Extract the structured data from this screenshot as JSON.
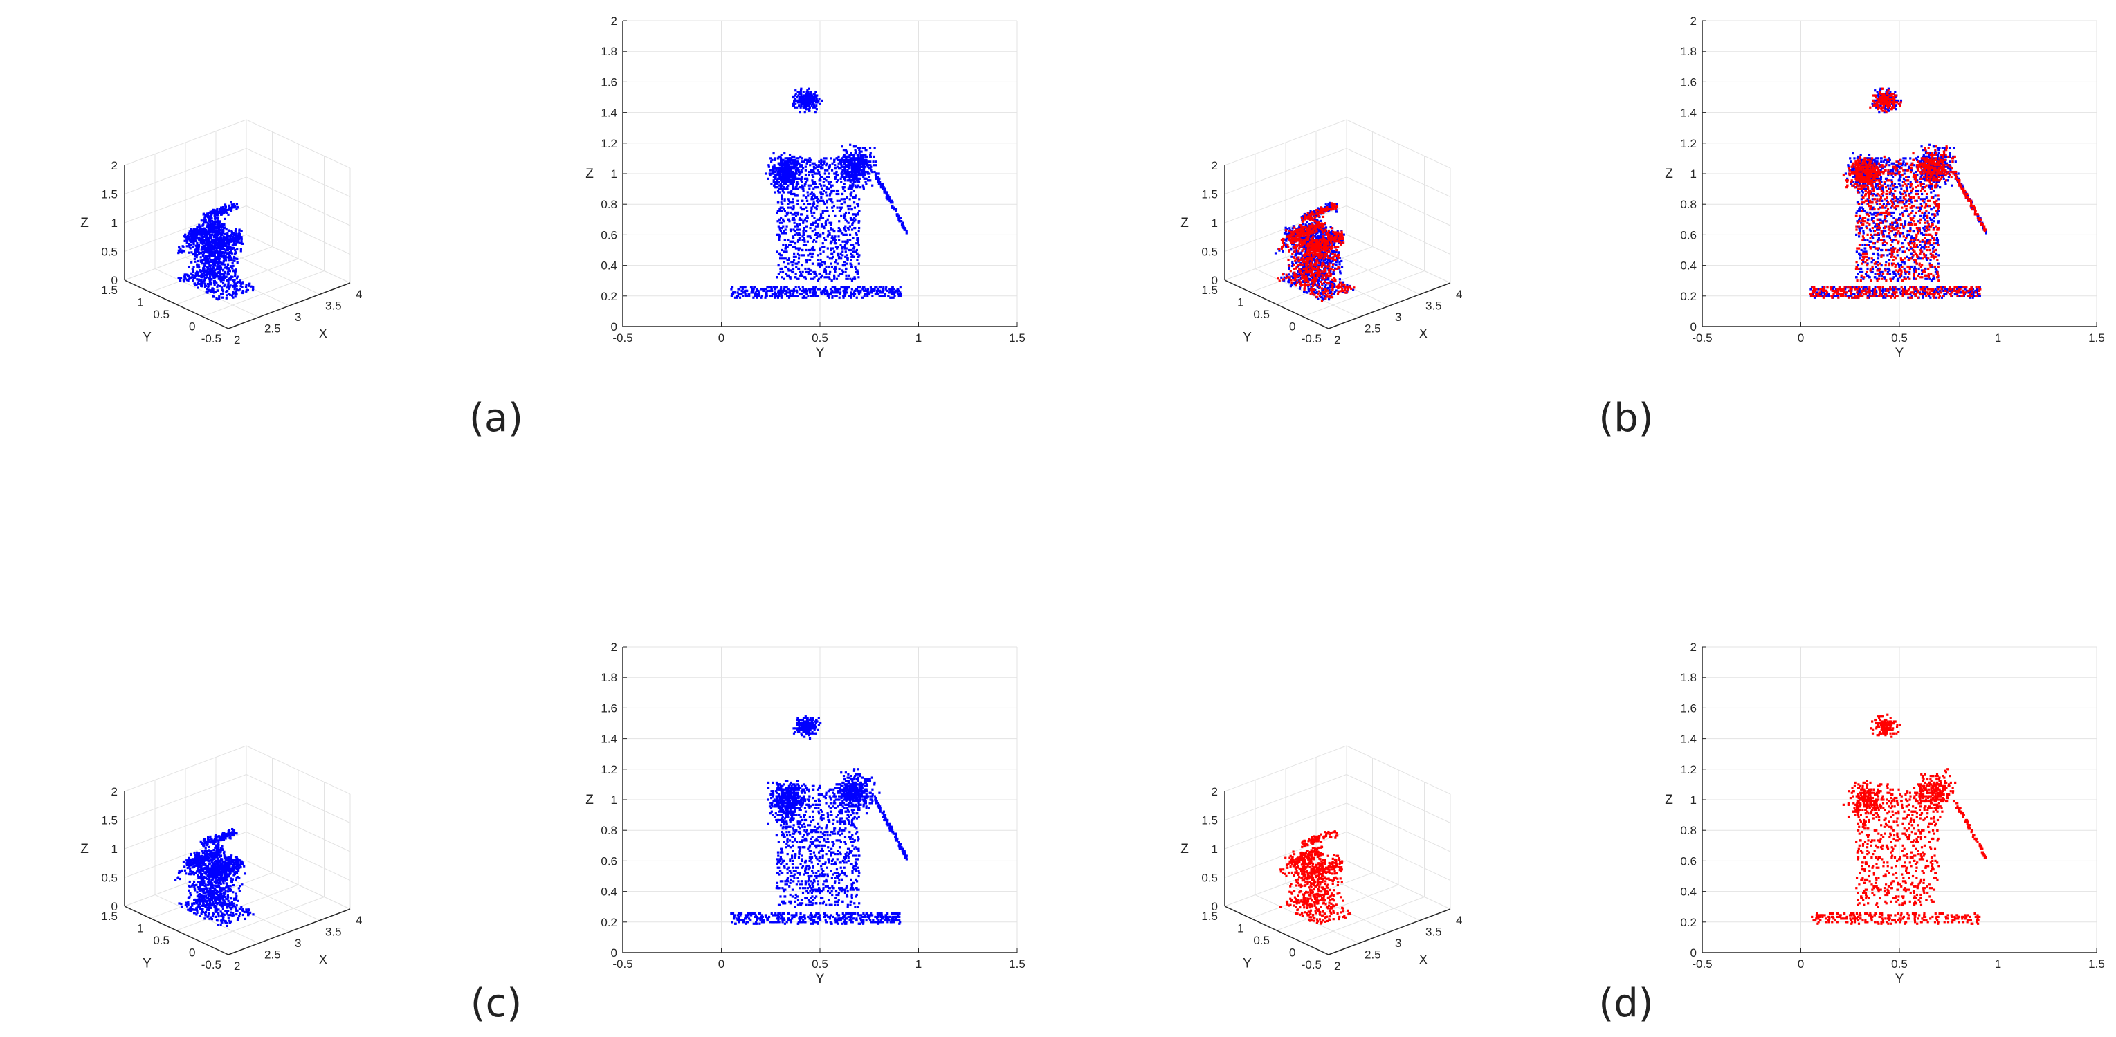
{
  "colors": {
    "blue": "#0000ff",
    "red": "#ff0000",
    "grid": "#e3e3e3",
    "axis": "#262626"
  },
  "captions": {
    "a": "(a)",
    "b": "(b)",
    "c": "(c)",
    "d": "(d)"
  },
  "chart_data": [
    {
      "id": "p3d_a",
      "type": "scatter",
      "view": "3d",
      "xlabel": "X",
      "ylabel": "Y",
      "zlabel": "Z",
      "xlim": [
        2,
        4
      ],
      "ylim": [
        -0.5,
        1.5
      ],
      "zlim": [
        0,
        2
      ],
      "xticks": [
        "2",
        "2.5",
        "3",
        "3.5",
        "4"
      ],
      "yticks": [
        "-0.5",
        "0",
        "0.5",
        "1",
        "1.5"
      ],
      "zticks": [
        "0",
        "0.5",
        "1",
        "1.5",
        "2"
      ],
      "grid": true,
      "series": [
        {
          "color": "blue",
          "seed": 11,
          "count": 1500
        }
      ]
    },
    {
      "id": "p2d_a",
      "type": "scatter",
      "view": "2d",
      "xlabel": "Y",
      "ylabel": "Z",
      "xlim": [
        -0.5,
        1.5
      ],
      "ylim": [
        0,
        2
      ],
      "xticks": [
        "-0.5",
        "0",
        "0.5",
        "1",
        "1.5"
      ],
      "yticks": [
        "0",
        "0.2",
        "0.4",
        "0.6",
        "0.8",
        "1",
        "1.2",
        "1.4",
        "1.6",
        "1.8",
        "2"
      ],
      "grid": true,
      "series": [
        {
          "color": "blue",
          "seed": 11,
          "count": 2600
        }
      ]
    },
    {
      "id": "p3d_b",
      "type": "scatter",
      "view": "3d",
      "xlabel": "X",
      "ylabel": "Y",
      "zlabel": "Z",
      "xlim": [
        2,
        4
      ],
      "ylim": [
        -0.5,
        1.5
      ],
      "zlim": [
        0,
        2
      ],
      "xticks": [
        "2",
        "2.5",
        "3",
        "3.5",
        "4"
      ],
      "yticks": [
        "-0.5",
        "0",
        "0.5",
        "1",
        "1.5"
      ],
      "zticks": [
        "0",
        "0.5",
        "1",
        "1.5",
        "2"
      ],
      "grid": true,
      "series": [
        {
          "color": "blue",
          "seed": 11,
          "count": 1200
        },
        {
          "color": "red",
          "seed": 23,
          "count": 900
        }
      ]
    },
    {
      "id": "p2d_b",
      "type": "scatter",
      "view": "2d",
      "xlabel": "Y",
      "ylabel": "Z",
      "xlim": [
        -0.5,
        1.5
      ],
      "ylim": [
        0,
        2
      ],
      "xticks": [
        "-0.5",
        "0",
        "0.5",
        "1",
        "1.5"
      ],
      "yticks": [
        "0",
        "0.2",
        "0.4",
        "0.6",
        "0.8",
        "1",
        "1.2",
        "1.4",
        "1.6",
        "1.8",
        "2"
      ],
      "grid": true,
      "series": [
        {
          "color": "blue",
          "seed": 11,
          "count": 2000
        },
        {
          "color": "red",
          "seed": 23,
          "count": 1700
        }
      ]
    },
    {
      "id": "p3d_c",
      "type": "scatter",
      "view": "3d",
      "xlabel": "X",
      "ylabel": "Y",
      "zlabel": "Z",
      "xlim": [
        2,
        4
      ],
      "ylim": [
        -0.5,
        1.5
      ],
      "zlim": [
        0,
        2
      ],
      "xticks": [
        "2",
        "2.5",
        "3",
        "3.5",
        "4"
      ],
      "yticks": [
        "-0.5",
        "0",
        "0.5",
        "1",
        "1.5"
      ],
      "zticks": [
        "0",
        "0.5",
        "1",
        "1.5",
        "2"
      ],
      "grid": true,
      "series": [
        {
          "color": "blue",
          "seed": 37,
          "count": 1400
        }
      ]
    },
    {
      "id": "p2d_c",
      "type": "scatter",
      "view": "2d",
      "xlabel": "Y",
      "ylabel": "Z",
      "xlim": [
        -0.5,
        1.5
      ],
      "ylim": [
        0,
        2
      ],
      "xticks": [
        "-0.5",
        "0",
        "0.5",
        "1",
        "1.5"
      ],
      "yticks": [
        "0",
        "0.2",
        "0.4",
        "0.6",
        "0.8",
        "1",
        "1.2",
        "1.4",
        "1.6",
        "1.8",
        "2"
      ],
      "grid": true,
      "series": [
        {
          "color": "blue",
          "seed": 37,
          "count": 2400
        }
      ]
    },
    {
      "id": "p3d_d",
      "type": "scatter",
      "view": "3d",
      "xlabel": "X",
      "ylabel": "Y",
      "zlabel": "Z",
      "xlim": [
        2,
        4
      ],
      "ylim": [
        -0.5,
        1.5
      ],
      "zlim": [
        0,
        2
      ],
      "xticks": [
        "2",
        "2.5",
        "3",
        "3.5",
        "4"
      ],
      "yticks": [
        "-0.5",
        "0",
        "0.5",
        "1",
        "1.5"
      ],
      "zticks": [
        "0",
        "0.5",
        "1",
        "1.5",
        "2"
      ],
      "grid": true,
      "series": [
        {
          "color": "red",
          "seed": 53,
          "count": 800
        }
      ]
    },
    {
      "id": "p2d_d",
      "type": "scatter",
      "view": "2d",
      "xlabel": "Y",
      "ylabel": "Z",
      "xlim": [
        -0.5,
        1.5
      ],
      "ylim": [
        0,
        2
      ],
      "xticks": [
        "-0.5",
        "0",
        "0.5",
        "1",
        "1.5"
      ],
      "yticks": [
        "0",
        "0.2",
        "0.4",
        "0.6",
        "0.8",
        "1",
        "1.2",
        "1.4",
        "1.6",
        "1.8",
        "2"
      ],
      "grid": true,
      "series": [
        {
          "color": "red",
          "seed": 53,
          "count": 1500
        }
      ]
    }
  ]
}
